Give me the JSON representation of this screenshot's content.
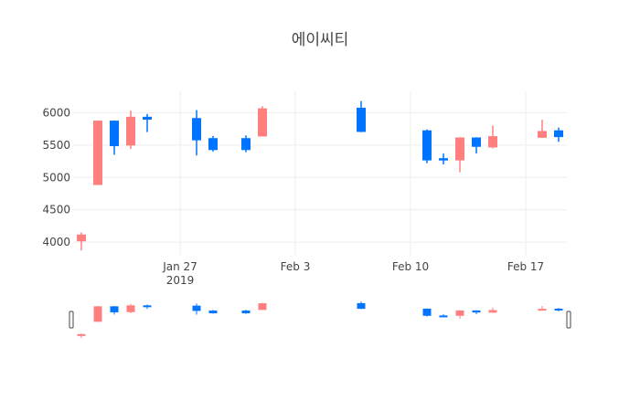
{
  "chart_data": {
    "type": "candlestick",
    "title": "에이씨티",
    "xlabel": "",
    "ylabel": "",
    "y_ticks": [
      4000,
      4500,
      5000,
      5500,
      6000
    ],
    "ylim": [
      3790,
      6330
    ],
    "x_ticks": [
      {
        "date": "2019-01-27",
        "label": "Jan 27",
        "sublabel": "2019"
      },
      {
        "date": "2019-02-03",
        "label": "Feb 3",
        "sublabel": ""
      },
      {
        "date": "2019-02-10",
        "label": "Feb 10",
        "sublabel": ""
      },
      {
        "date": "2019-02-17",
        "label": "Feb 17",
        "sublabel": ""
      }
    ],
    "xlim": [
      "2019-01-21",
      "2019-02-19"
    ],
    "grid": true,
    "legend": "none",
    "rangeslider": true,
    "increasing_color": "#FF7F7F",
    "decreasing_color": "#0074FF",
    "candles": [
      {
        "date": "2019-01-21",
        "open": 4020,
        "high": 4150,
        "low": 3870,
        "close": 4110
      },
      {
        "date": "2019-01-22",
        "open": 4890,
        "high": 5880,
        "low": 4890,
        "close": 5870
      },
      {
        "date": "2019-01-23",
        "open": 5870,
        "high": 5880,
        "low": 5350,
        "close": 5490
      },
      {
        "date": "2019-01-24",
        "open": 5500,
        "high": 6030,
        "low": 5440,
        "close": 5930
      },
      {
        "date": "2019-01-25",
        "open": 5930,
        "high": 5980,
        "low": 5700,
        "close": 5900
      },
      {
        "date": "2019-01-28",
        "open": 5910,
        "high": 6040,
        "low": 5340,
        "close": 5580
      },
      {
        "date": "2019-01-29",
        "open": 5600,
        "high": 5640,
        "low": 5400,
        "close": 5430
      },
      {
        "date": "2019-01-31",
        "open": 5600,
        "high": 5650,
        "low": 5390,
        "close": 5430
      },
      {
        "date": "2019-02-01",
        "open": 5640,
        "high": 6100,
        "low": 5640,
        "close": 6060
      },
      {
        "date": "2019-02-07",
        "open": 6070,
        "high": 6180,
        "low": 5700,
        "close": 5710
      },
      {
        "date": "2019-02-11",
        "open": 5720,
        "high": 5740,
        "low": 5220,
        "close": 5270
      },
      {
        "date": "2019-02-12",
        "open": 5290,
        "high": 5370,
        "low": 5200,
        "close": 5270
      },
      {
        "date": "2019-02-13",
        "open": 5270,
        "high": 5620,
        "low": 5080,
        "close": 5610
      },
      {
        "date": "2019-02-14",
        "open": 5610,
        "high": 5620,
        "low": 5370,
        "close": 5480
      },
      {
        "date": "2019-02-15",
        "open": 5470,
        "high": 5800,
        "low": 5450,
        "close": 5630
      },
      {
        "date": "2019-02-18",
        "open": 5620,
        "high": 5890,
        "low": 5610,
        "close": 5710
      },
      {
        "date": "2019-02-19",
        "open": 5720,
        "high": 5770,
        "low": 5550,
        "close": 5630
      }
    ]
  }
}
